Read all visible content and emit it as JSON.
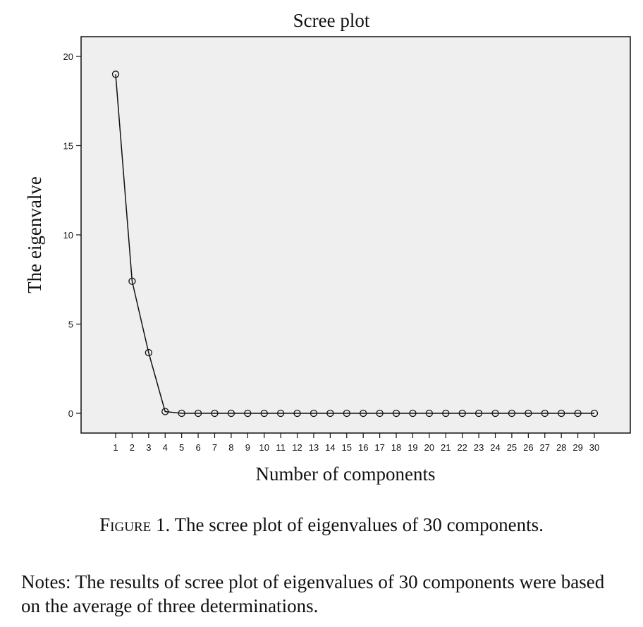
{
  "chart_data": {
    "type": "line",
    "title": "Scree plot",
    "xlabel": "Number of components",
    "ylabel": "The eigenvalve",
    "x": [
      1,
      2,
      3,
      4,
      5,
      6,
      7,
      8,
      9,
      10,
      11,
      12,
      13,
      14,
      15,
      16,
      17,
      18,
      19,
      20,
      21,
      22,
      23,
      24,
      25,
      26,
      27,
      28,
      29,
      30
    ],
    "values": [
      19.0,
      7.4,
      3.4,
      0.1,
      0,
      0,
      0,
      0,
      0,
      0,
      0,
      0,
      0,
      0,
      0,
      0,
      0,
      0,
      0,
      0,
      0,
      0,
      0,
      0,
      0,
      0,
      0,
      0,
      0,
      0
    ],
    "yticks": [
      "0",
      "5",
      "10",
      "15",
      "20"
    ],
    "xticks": [
      "1",
      "2",
      "3",
      "4",
      "5",
      "6",
      "7",
      "8",
      "9",
      "10",
      "11",
      "12",
      "13",
      "14",
      "15",
      "16",
      "17",
      "18",
      "19",
      "20",
      "21",
      "22",
      "23",
      "24",
      "25",
      "26",
      "27",
      "28",
      "29",
      "30"
    ],
    "ylim": [
      -1,
      21
    ],
    "grid": false,
    "marker": "open-circle",
    "colors": {
      "plot_background": "#efefef",
      "line": "#111111"
    }
  },
  "caption": {
    "prefix": "Figure",
    "text": "1. The scree plot of eigenvalues of 30 components."
  },
  "notes": "Notes: The results of scree plot of eigenvalues of 30 components were based on the average of three determinations."
}
